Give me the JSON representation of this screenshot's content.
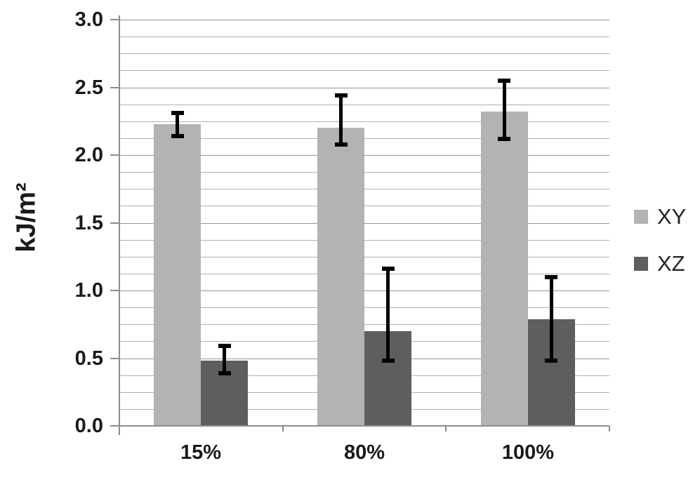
{
  "chart_data": {
    "type": "bar",
    "title": "",
    "xlabel": "",
    "ylabel": "kJ/m²",
    "categories": [
      "15%",
      "80%",
      "100%"
    ],
    "series": [
      {
        "name": "XY",
        "color": "#b3b3b3",
        "values": [
          2.23,
          2.2,
          2.32
        ],
        "error_low": [
          2.14,
          2.08,
          2.12
        ],
        "error_high": [
          2.31,
          2.44,
          2.55
        ]
      },
      {
        "name": "XZ",
        "color": "#5e5e5e",
        "values": [
          0.48,
          0.7,
          0.79
        ],
        "error_low": [
          0.39,
          0.48,
          0.48
        ],
        "error_high": [
          0.59,
          1.16,
          1.1
        ]
      }
    ],
    "ylim": [
      0,
      3.0
    ],
    "y_major_tick": 0.5,
    "y_minor_gridline": 0.125,
    "y_tick_labels": [
      "0.0",
      "0.5",
      "1.0",
      "1.5",
      "2.0",
      "2.5",
      "3.0"
    ],
    "grid": "horizontal-minor",
    "legend_position": "right",
    "error_bar_color": "#000000",
    "gridline_color": "#b0b0b0",
    "axis_color": "#8c8c8c",
    "text_color": "#1a1a1a",
    "background": "#ffffff"
  }
}
